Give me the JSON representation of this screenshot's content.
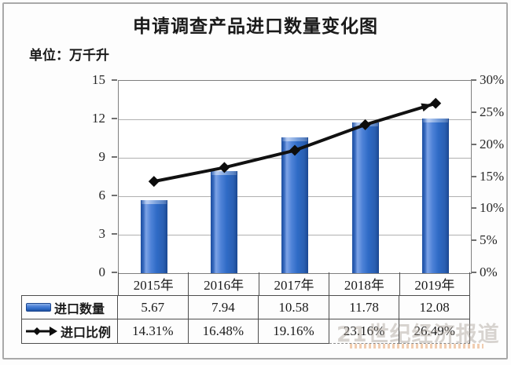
{
  "page": {
    "title": "申请调查产品进口数量变化图",
    "unit_label": "单位：万千升"
  },
  "chart_data": {
    "type": "bar",
    "subtype": "combo bar + line, dual axis",
    "title": "申请调查产品进口数量变化图",
    "unit": "万千升",
    "categories": [
      "2015年",
      "2016年",
      "2017年",
      "2018年",
      "2019年"
    ],
    "series": [
      {
        "name": "进口数量",
        "type": "bar",
        "axis": "left",
        "color": "#2f6bc6",
        "values": [
          5.67,
          7.94,
          10.58,
          11.78,
          12.08
        ]
      },
      {
        "name": "进口比例",
        "type": "line",
        "axis": "right",
        "color": "#111111",
        "marker": "diamond",
        "end_cap": "arrow",
        "values": [
          14.31,
          16.48,
          19.16,
          23.16,
          26.49
        ],
        "value_unit": "%"
      }
    ],
    "left_axis": {
      "min": 0,
      "max": 15,
      "ticks": [
        "15",
        "12",
        "9",
        "6",
        "3",
        "0"
      ]
    },
    "right_axis": {
      "min": 0,
      "max": 30,
      "ticks": [
        "30%",
        "25%",
        "20%",
        "15%",
        "10%",
        "5%",
        "0%"
      ]
    },
    "grid": true,
    "legend_position": "table-left"
  },
  "table": {
    "rows": [
      {
        "label": "进口数量",
        "icon": "bar-swatch-icon",
        "values": [
          "5.67",
          "7.94",
          "10.58",
          "11.78",
          "12.08"
        ]
      },
      {
        "label": "进口比例",
        "icon": "line-arrow-swatch-icon",
        "values": [
          "14.31%",
          "16.48%",
          "19.16%",
          "23.16%",
          "26.49%"
        ]
      }
    ]
  },
  "watermark": {
    "text": "21世纪经济报道"
  },
  "colors": {
    "bar_blue": "#2f6bc6",
    "line_black": "#111111",
    "grid_gray": "#b0b0b0",
    "border_gray": "#4d4d4d",
    "frame_gray": "#a9a9a9"
  }
}
